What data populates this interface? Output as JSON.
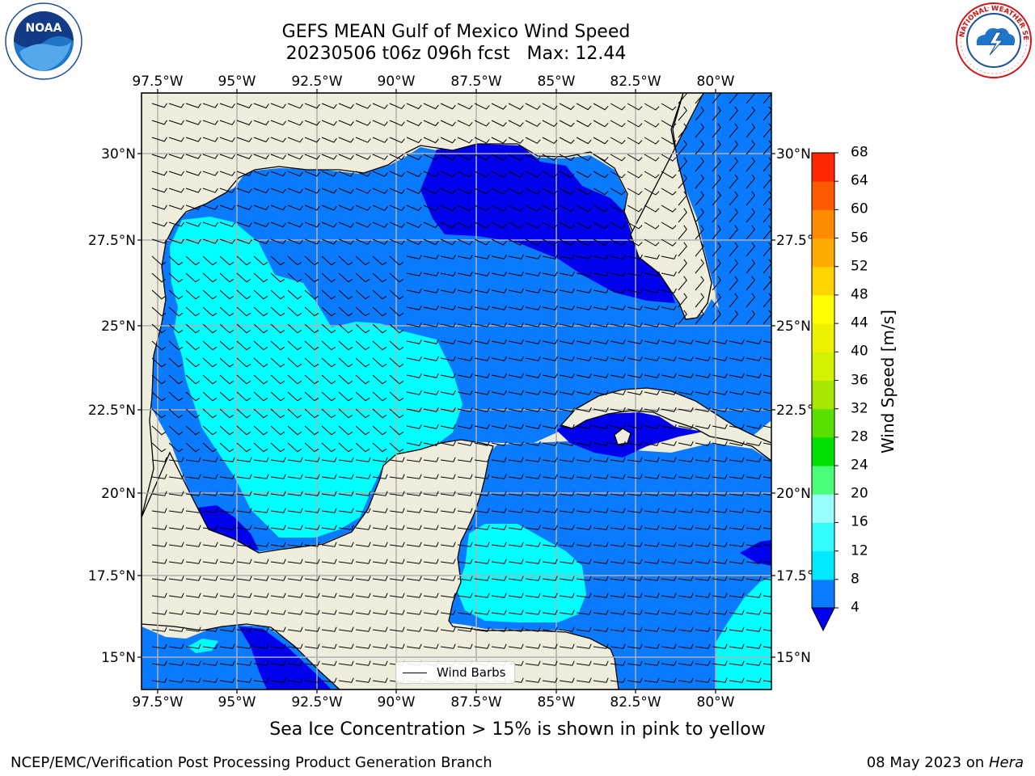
{
  "title_line1": "GEFS MEAN Gulf of Mexico Wind Speed",
  "title_line2": "20230506 t06z 096h fcst   Max: 12.44",
  "subtitle": "Sea Ice Concentration > 15% is shown in pink to yellow",
  "footer_left": "NCEP/EMC/Verification Post Processing Product Generation Branch",
  "footer_right_date": "08 May 2023 on",
  "footer_right_machine": "Hera",
  "legend_label": "Wind Barbs",
  "colorbar_label": "Wind Speed [m/s]",
  "colorbar_ticks": [
    "4",
    "8",
    "12",
    "16",
    "20",
    "24",
    "28",
    "32",
    "36",
    "40",
    "44",
    "48",
    "52",
    "56",
    "60",
    "64",
    "68"
  ],
  "colorbar_colors": [
    "#0a7bff",
    "#00eaff",
    "#33fcff",
    "#99ffff",
    "#4cff7a",
    "#00e000",
    "#5ae000",
    "#a6e600",
    "#d4f200",
    "#eef200",
    "#ffff00",
    "#ffd400",
    "#ffaa00",
    "#ff8c00",
    "#ff5a00",
    "#ff2800"
  ],
  "colorbar_extend_color": "#0000ee",
  "lon_labels": [
    "97.5°W",
    "95°W",
    "92.5°W",
    "90°W",
    "87.5°W",
    "85°W",
    "82.5°W",
    "80°W"
  ],
  "lat_labels": [
    "30°N",
    "27.5°N",
    "25°N",
    "22.5°N",
    "20°N",
    "17.5°N",
    "15°N"
  ],
  "logos": {
    "left": "NOAA",
    "right": "NATIONAL WEATHER SERVICE"
  },
  "colors": {
    "land": "#efeddc",
    "ocean_4_8": "#0a7bff",
    "ocean_lt4": "#0000ee",
    "ocean_8_12": "#00ffff",
    "grid": "#b0b0b0"
  }
}
